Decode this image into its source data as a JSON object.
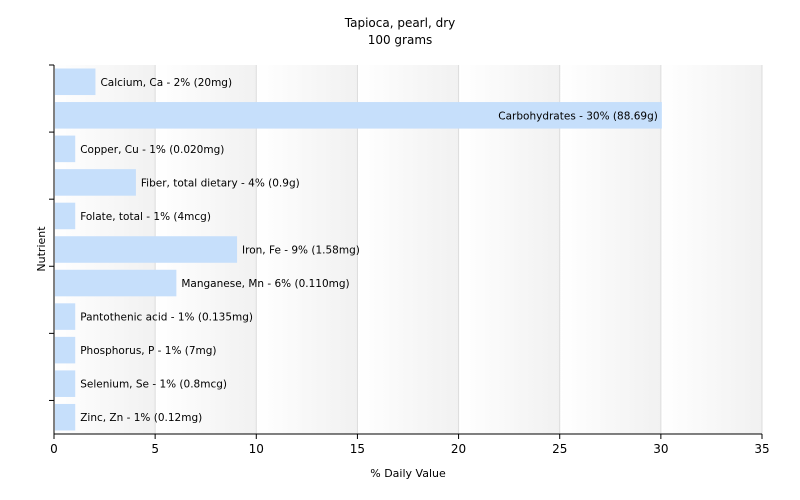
{
  "chart_data": {
    "type": "bar",
    "orientation": "horizontal",
    "title": "Tapioca, pearl, dry",
    "subtitle": "100 grams",
    "xlabel": "% Daily Value",
    "ylabel": "Nutrient",
    "xlim": [
      0,
      35
    ],
    "xticks": [
      0,
      5,
      10,
      15,
      20,
      25,
      30,
      35
    ],
    "grid": true,
    "bar_color": "#c6dffb",
    "categories": [
      "Calcium, Ca",
      "Carbohydrates",
      "Copper, Cu",
      "Fiber, total dietary",
      "Folate, total",
      "Iron, Fe",
      "Manganese, Mn",
      "Pantothenic acid",
      "Phosphorus, P",
      "Selenium, Se",
      "Zinc, Zn"
    ],
    "values": [
      2,
      30,
      1,
      4,
      1,
      9,
      6,
      1,
      1,
      1,
      1
    ],
    "labels": [
      "Calcium, Ca - 2% (20mg)",
      "Carbohydrates - 30% (88.69g)",
      "Copper, Cu - 1% (0.020mg)",
      "Fiber, total dietary - 4% (0.9g)",
      "Folate, total - 1% (4mcg)",
      "Iron, Fe - 9% (1.58mg)",
      "Manganese, Mn - 6% (0.110mg)",
      "Pantothenic acid - 1% (0.135mg)",
      "Phosphorus, P - 1% (7mg)",
      "Selenium, Se - 1% (0.8mcg)",
      "Zinc, Zn - 1% (0.12mg)"
    ]
  }
}
